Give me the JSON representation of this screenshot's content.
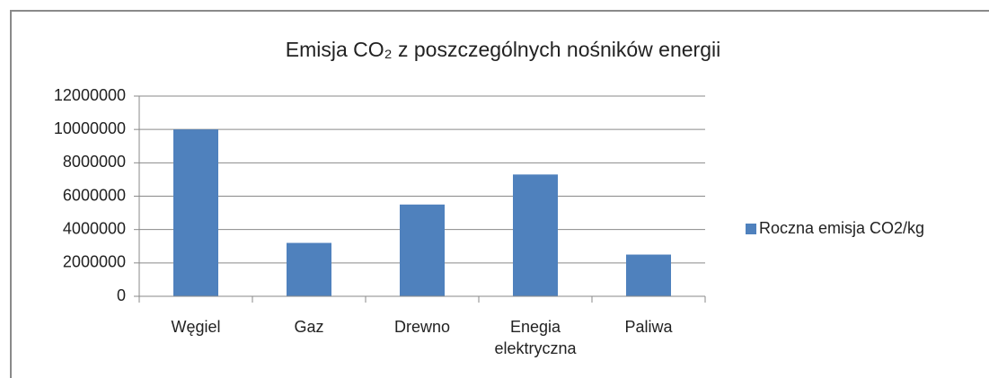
{
  "chart_data": {
    "type": "bar",
    "title": "Emisja CO₂ z poszczególnych nośników energii",
    "categories": [
      "Węgiel",
      "Gaz",
      "Drewno",
      "Enegia elektryczna",
      "Paliwa"
    ],
    "series": [
      {
        "name": "Roczna emisja CO2/kg",
        "color": "#4f81bd",
        "values": [
          10000000,
          3200000,
          5500000,
          7300000,
          2500000
        ]
      }
    ],
    "ylim": [
      0,
      12000000
    ],
    "yticks": [
      0,
      2000000,
      4000000,
      6000000,
      8000000,
      10000000,
      12000000
    ],
    "grid": true,
    "legend": "right"
  }
}
